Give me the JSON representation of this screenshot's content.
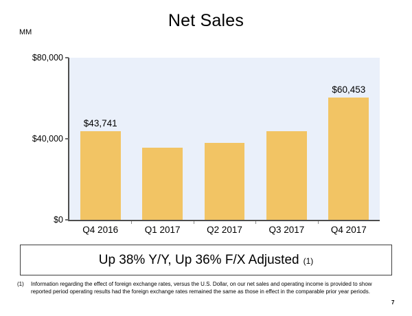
{
  "page": {
    "number": "7"
  },
  "chart_data": {
    "type": "bar",
    "title": "Net Sales",
    "units": "MM",
    "categories": [
      "Q4 2016",
      "Q1 2017",
      "Q2 2017",
      "Q3 2017",
      "Q4 2017"
    ],
    "values": [
      43741,
      35714,
      37955,
      43744,
      60453
    ],
    "bar_labels": [
      "$43,741",
      "",
      "",
      "",
      "$60,453"
    ],
    "xlabel": "",
    "ylabel": "",
    "ylim": [
      0,
      80000
    ],
    "yticks": [
      {
        "value": 0,
        "label": "$0"
      },
      {
        "value": 40000,
        "label": "$40,000"
      },
      {
        "value": 80000,
        "label": "$80,000"
      }
    ],
    "grid": false,
    "legend": false,
    "bar_color": "#F2C464",
    "plot_bg": "#EAF0FA",
    "axis_color": "#4D4D4D"
  },
  "banner": {
    "text": "Up 38% Y/Y, Up 36% F/X Adjusted",
    "footnote_ref": "(1)"
  },
  "footnote": {
    "marker": "(1)",
    "lines": [
      "Information regarding the effect of foreign exchange rates, versus the U.S. Dollar, on our net sales and operating income is provided to show",
      "reported period operating results had the foreign exchange rates remained the same as those in effect in the comparable prior year periods."
    ]
  }
}
